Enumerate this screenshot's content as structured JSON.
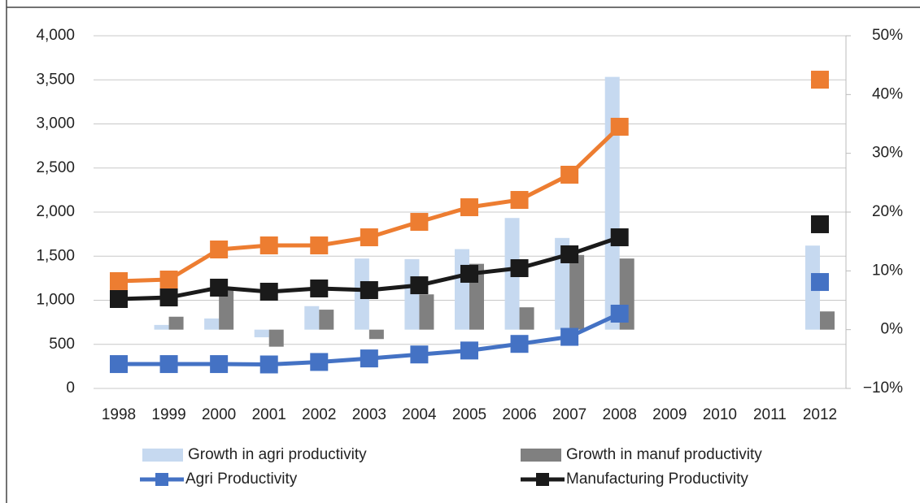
{
  "chart_data": {
    "type": "combo",
    "categories": [
      "1998",
      "1999",
      "2000",
      "2001",
      "2002",
      "2003",
      "2004",
      "2005",
      "2006",
      "2007",
      "2008",
      "2009",
      "2010",
      "2011",
      "2012"
    ],
    "ylim": [
      0,
      4000
    ],
    "yticks": [
      0,
      500,
      {
        "value": 1000,
        "label": "1,000"
      },
      {
        "value": 1500,
        "label": "1,500"
      },
      {
        "value": 2000,
        "label": "2,000"
      },
      {
        "value": 2500,
        "label": "2,500"
      },
      {
        "value": 3000,
        "label": "3,000"
      },
      {
        "value": 3500,
        "label": "3,500"
      },
      {
        "value": 4000,
        "label": "4,000"
      }
    ],
    "y2lim": [
      -10,
      50
    ],
    "y2ticks": [
      {
        "value": -10,
        "label": "−10%"
      },
      {
        "value": 0,
        "label": "0%"
      },
      {
        "value": 10,
        "label": "10%"
      },
      {
        "value": 20,
        "label": "20%"
      },
      {
        "value": 30,
        "label": "30%"
      },
      {
        "value": 40,
        "label": "40%"
      },
      {
        "value": 50,
        "label": "50%"
      }
    ],
    "grid": true,
    "series": [
      {
        "name": "Growth in agri productivity",
        "type": "bar",
        "axis": "y2",
        "color": "#c6d9f0",
        "values": [
          null,
          0.8,
          1.9,
          -1.3,
          4,
          12.1,
          12.0,
          13.7,
          19.0,
          15.6,
          43.0,
          null,
          null,
          null,
          14.3
        ]
      },
      {
        "name": "Growth in manuf productivity",
        "type": "bar",
        "axis": "y2",
        "color": "#808080",
        "values": [
          null,
          2.2,
          7.0,
          -2.9,
          3.4,
          -1.6,
          6.0,
          11.2,
          3.8,
          12.7,
          12.1,
          null,
          null,
          null,
          3.1
        ]
      },
      {
        "name": "Agri Productivity",
        "type": "line",
        "color": "#4472c4",
        "values": [
          276,
          276,
          276,
          272,
          300,
          340,
          385,
          430,
          505,
          585,
          848,
          null,
          null,
          null,
          1207
        ]
      },
      {
        "name": "Manufacturing Productivity",
        "type": "line",
        "color": "#1a1a1a",
        "values": [
          1014,
          1032,
          1143,
          1097,
          1134,
          1115,
          1170,
          1300,
          1364,
          1521,
          1714,
          null,
          null,
          null,
          1862
        ]
      },
      {
        "type": "line",
        "color": "#ed7d31",
        "values": [
          1217,
          1235,
          1576,
          1622,
          1622,
          1714,
          1889,
          2055,
          2138,
          2424,
          2968,
          null,
          null,
          null,
          3502
        ]
      }
    ]
  }
}
